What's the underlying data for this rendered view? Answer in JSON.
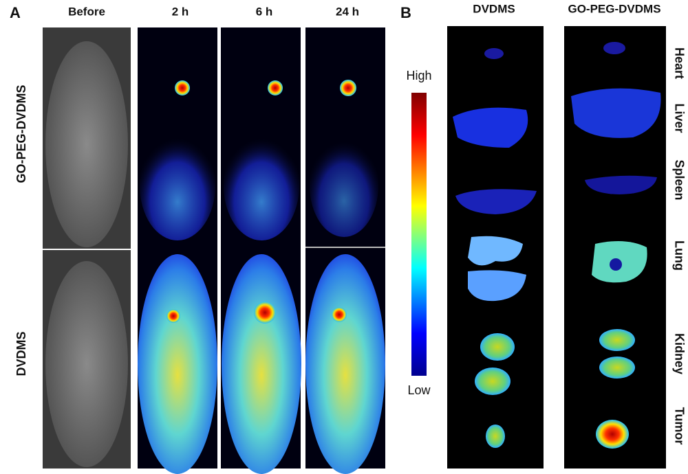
{
  "panel_a": {
    "label": "A",
    "columns": [
      "Before",
      "2 h",
      "6 h",
      "24 h"
    ],
    "rows": [
      "GO-PEG-DVDMS",
      "DVDMS"
    ]
  },
  "colorbar": {
    "high": "High",
    "low": "Low"
  },
  "panel_b": {
    "label": "B",
    "columns": [
      "DVDMS",
      "GO-PEG-DVDMS"
    ],
    "organs": [
      "Heart",
      "Liver",
      "Spleen",
      "Lung",
      "Kidney",
      "Tumor"
    ]
  }
}
